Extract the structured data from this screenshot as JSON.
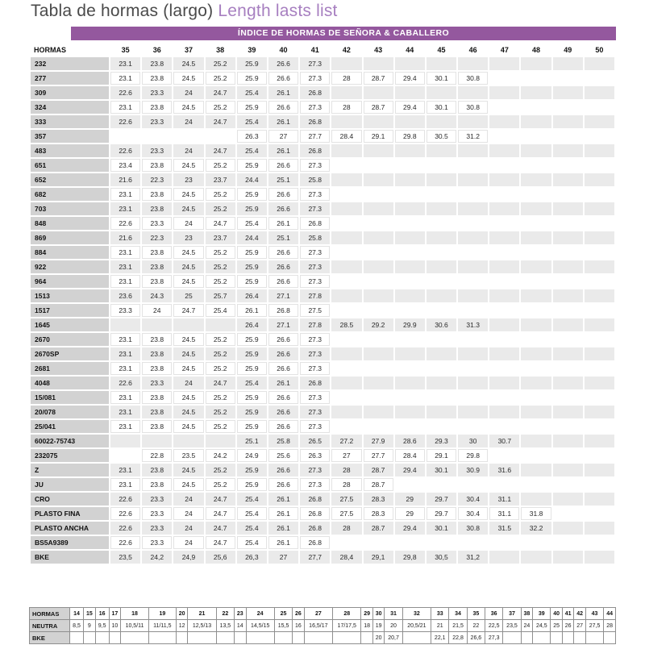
{
  "title": {
    "main": "Tabla de hormas (largo) ",
    "accent": "Length lasts list"
  },
  "banner": "ÍNDICE DE HORMAS DE SEÑORA & CABALLERO",
  "colors": {
    "banner_purple": "#94589e",
    "title_accent": "#a77fc0",
    "label_gray": "#d2d2d2",
    "row_shade": "#eaeaea"
  },
  "main_table": {
    "columns": [
      "HORMAS",
      "35",
      "36",
      "37",
      "38",
      "39",
      "40",
      "41",
      "42",
      "43",
      "44",
      "45",
      "46",
      "47",
      "48",
      "49",
      "50"
    ],
    "rows": [
      {
        "label": "232",
        "values": [
          "23.1",
          "23.8",
          "24.5",
          "25.2",
          "25.9",
          "26.6",
          "27.3",
          "",
          "",
          "",
          "",
          "",
          "",
          "",
          "",
          ""
        ]
      },
      {
        "label": "277",
        "values": [
          "23.1",
          "23.8",
          "24.5",
          "25.2",
          "25.9",
          "26.6",
          "27.3",
          "28",
          "28.7",
          "29.4",
          "30.1",
          "30.8",
          "",
          "",
          "",
          ""
        ]
      },
      {
        "label": "309",
        "values": [
          "22.6",
          "23.3",
          "24",
          "24.7",
          "25.4",
          "26.1",
          "26.8",
          "",
          "",
          "",
          "",
          "",
          "",
          "",
          "",
          ""
        ]
      },
      {
        "label": "324",
        "values": [
          "23.1",
          "23.8",
          "24.5",
          "25.2",
          "25.9",
          "26.6",
          "27.3",
          "28",
          "28.7",
          "29.4",
          "30.1",
          "30.8",
          "",
          "",
          "",
          ""
        ]
      },
      {
        "label": "333",
        "values": [
          "22.6",
          "23.3",
          "24",
          "24.7",
          "25.4",
          "26.1",
          "26.8",
          "",
          "",
          "",
          "",
          "",
          "",
          "",
          "",
          ""
        ]
      },
      {
        "label": "357",
        "values": [
          "",
          "",
          "",
          "",
          "26.3",
          "27",
          "27.7",
          "28.4",
          "29.1",
          "29.8",
          "30.5",
          "31.2",
          "",
          "",
          "",
          ""
        ]
      },
      {
        "label": "483",
        "values": [
          "22.6",
          "23.3",
          "24",
          "24.7",
          "25.4",
          "26.1",
          "26.8",
          "",
          "",
          "",
          "",
          "",
          "",
          "",
          "",
          ""
        ]
      },
      {
        "label": "651",
        "values": [
          "23.4",
          "23.8",
          "24.5",
          "25.2",
          "25.9",
          "26.6",
          "27.3",
          "",
          "",
          "",
          "",
          "",
          "",
          "",
          "",
          ""
        ]
      },
      {
        "label": "652",
        "values": [
          "21.6",
          "22.3",
          "23",
          "23.7",
          "24.4",
          "25.1",
          "25.8",
          "",
          "",
          "",
          "",
          "",
          "",
          "",
          "",
          ""
        ]
      },
      {
        "label": "682",
        "values": [
          "23.1",
          "23.8",
          "24.5",
          "25.2",
          "25.9",
          "26.6",
          "27.3",
          "",
          "",
          "",
          "",
          "",
          "",
          "",
          "",
          ""
        ]
      },
      {
        "label": "703",
        "values": [
          "23.1",
          "23.8",
          "24.5",
          "25.2",
          "25.9",
          "26.6",
          "27.3",
          "",
          "",
          "",
          "",
          "",
          "",
          "",
          "",
          ""
        ]
      },
      {
        "label": "848",
        "values": [
          "22.6",
          "23.3",
          "24",
          "24.7",
          "25.4",
          "26.1",
          "26.8",
          "",
          "",
          "",
          "",
          "",
          "",
          "",
          "",
          ""
        ]
      },
      {
        "label": "869",
        "values": [
          "21.6",
          "22.3",
          "23",
          "23.7",
          "24.4",
          "25.1",
          "25.8",
          "",
          "",
          "",
          "",
          "",
          "",
          "",
          "",
          ""
        ]
      },
      {
        "label": "884",
        "values": [
          "23.1",
          "23.8",
          "24.5",
          "25.2",
          "25.9",
          "26.6",
          "27.3",
          "",
          "",
          "",
          "",
          "",
          "",
          "",
          "",
          ""
        ]
      },
      {
        "label": "922",
        "values": [
          "23.1",
          "23.8",
          "24.5",
          "25.2",
          "25.9",
          "26.6",
          "27.3",
          "",
          "",
          "",
          "",
          "",
          "",
          "",
          "",
          ""
        ]
      },
      {
        "label": "964",
        "values": [
          "23.1",
          "23.8",
          "24.5",
          "25.2",
          "25.9",
          "26.6",
          "27.3",
          "",
          "",
          "",
          "",
          "",
          "",
          "",
          "",
          ""
        ]
      },
      {
        "label": "1513",
        "values": [
          "23.6",
          "24.3",
          "25",
          "25.7",
          "26.4",
          "27.1",
          "27.8",
          "",
          "",
          "",
          "",
          "",
          "",
          "",
          "",
          ""
        ]
      },
      {
        "label": "1517",
        "values": [
          "23.3",
          "24",
          "24.7",
          "25.4",
          "26.1",
          "26.8",
          "27.5",
          "",
          "",
          "",
          "",
          "",
          "",
          "",
          "",
          ""
        ]
      },
      {
        "label": "1645",
        "values": [
          "",
          "",
          "",
          "",
          "26.4",
          "27.1",
          "27.8",
          "28.5",
          "29.2",
          "29.9",
          "30.6",
          "31.3",
          "",
          "",
          "",
          ""
        ]
      },
      {
        "label": "2670",
        "values": [
          "23.1",
          "23.8",
          "24.5",
          "25.2",
          "25.9",
          "26.6",
          "27.3",
          "",
          "",
          "",
          "",
          "",
          "",
          "",
          "",
          ""
        ]
      },
      {
        "label": "2670SP",
        "values": [
          "23.1",
          "23.8",
          "24.5",
          "25.2",
          "25.9",
          "26.6",
          "27.3",
          "",
          "",
          "",
          "",
          "",
          "",
          "",
          "",
          ""
        ]
      },
      {
        "label": "2681",
        "values": [
          "23.1",
          "23.8",
          "24.5",
          "25.2",
          "25.9",
          "26.6",
          "27.3",
          "",
          "",
          "",
          "",
          "",
          "",
          "",
          "",
          ""
        ]
      },
      {
        "label": "4048",
        "values": [
          "22.6",
          "23.3",
          "24",
          "24.7",
          "25.4",
          "26.1",
          "26.8",
          "",
          "",
          "",
          "",
          "",
          "",
          "",
          "",
          ""
        ]
      },
      {
        "label": "15/081",
        "values": [
          "23.1",
          "23.8",
          "24.5",
          "25.2",
          "25.9",
          "26.6",
          "27.3",
          "",
          "",
          "",
          "",
          "",
          "",
          "",
          "",
          ""
        ]
      },
      {
        "label": "20/078",
        "values": [
          "23.1",
          "23.8",
          "24.5",
          "25.2",
          "25.9",
          "26.6",
          "27.3",
          "",
          "",
          "",
          "",
          "",
          "",
          "",
          "",
          ""
        ]
      },
      {
        "label": "25/041",
        "values": [
          "23.1",
          "23.8",
          "24.5",
          "25.2",
          "25.9",
          "26.6",
          "27.3",
          "",
          "",
          "",
          "",
          "",
          "",
          "",
          "",
          ""
        ]
      },
      {
        "label": "60022-75743",
        "values": [
          "",
          "",
          "",
          "",
          "25.1",
          "25.8",
          "26.5",
          "27.2",
          "27.9",
          "28.6",
          "29.3",
          "30",
          "30.7",
          "",
          "",
          ""
        ]
      },
      {
        "label": "232075",
        "values": [
          "",
          "22.8",
          "23.5",
          "24.2",
          "24.9",
          "25.6",
          "26.3",
          "27",
          "27.7",
          "28.4",
          "29.1",
          "29.8",
          "",
          "",
          "",
          ""
        ]
      },
      {
        "label": "Z",
        "values": [
          "23.1",
          "23.8",
          "24.5",
          "25.2",
          "25.9",
          "26.6",
          "27.3",
          "28",
          "28.7",
          "29.4",
          "30.1",
          "30.9",
          "31.6",
          "",
          "",
          ""
        ]
      },
      {
        "label": "JU",
        "values": [
          "23.1",
          "23.8",
          "24.5",
          "25.2",
          "25.9",
          "26.6",
          "27.3",
          "28",
          "28.7",
          "",
          "",
          "",
          "",
          "",
          "",
          ""
        ]
      },
      {
        "label": "CRO",
        "values": [
          "22.6",
          "23.3",
          "24",
          "24.7",
          "25.4",
          "26.1",
          "26.8",
          "27.5",
          "28.3",
          "29",
          "29.7",
          "30.4",
          "31.1",
          "",
          "",
          ""
        ]
      },
      {
        "label": "PLASTO FINA",
        "values": [
          "22.6",
          "23.3",
          "24",
          "24.7",
          "25.4",
          "26.1",
          "26.8",
          "27.5",
          "28.3",
          "29",
          "29.7",
          "30.4",
          "31.1",
          "31.8",
          "",
          ""
        ]
      },
      {
        "label": "PLASTO ANCHA",
        "values": [
          "22.6",
          "23.3",
          "24",
          "24.7",
          "25.4",
          "26.1",
          "26.8",
          "28",
          "28.7",
          "29.4",
          "30.1",
          "30.8",
          "31.5",
          "32.2",
          "",
          ""
        ]
      },
      {
        "label": "BS5A9389",
        "values": [
          "22.6",
          "23.3",
          "24",
          "24.7",
          "25.4",
          "26.1",
          "26.8",
          "",
          "",
          "",
          "",
          "",
          "",
          "",
          "",
          ""
        ]
      },
      {
        "label": "BKE",
        "values": [
          "23,5",
          "24,2",
          "24,9",
          "25,6",
          "26,3",
          "27",
          "27,7",
          "28,4",
          "29,1",
          "29,8",
          "30,5",
          "31,2",
          "",
          "",
          "",
          ""
        ]
      }
    ]
  },
  "bottom_table": {
    "columns": [
      "HORMAS",
      "14",
      "15",
      "16",
      "17",
      "18",
      "19",
      "20",
      "21",
      "22",
      "23",
      "24",
      "25",
      "26",
      "27",
      "28",
      "29",
      "30",
      "31",
      "32",
      "33",
      "34",
      "35",
      "36",
      "37",
      "38",
      "39",
      "40",
      "41",
      "42",
      "43",
      "44"
    ],
    "rows": [
      {
        "label": "NEUTRA",
        "values": [
          "8,5",
          "9",
          "9,5",
          "10",
          "10,5/11",
          "11/11,5",
          "12",
          "12,5/13",
          "13,5",
          "14",
          "14,5/15",
          "15,5",
          "16",
          "16,5/17",
          "17/17,5",
          "18",
          "19",
          "20",
          "20,5/21",
          "21",
          "21,5",
          "22",
          "22,5",
          "23,5",
          "24",
          "24,5",
          "25",
          "26",
          "27",
          "27,5",
          "28"
        ]
      },
      {
        "label": "BKE",
        "values": [
          "",
          "",
          "",
          "",
          "",
          "",
          "",
          "",
          "",
          "",
          "",
          "",
          "",
          "",
          "",
          "",
          "20",
          "20,7",
          "",
          "22,1",
          "22,8",
          "26,6",
          "27,3",
          "",
          "",
          "",
          "",
          "",
          "",
          "",
          ""
        ]
      }
    ]
  }
}
